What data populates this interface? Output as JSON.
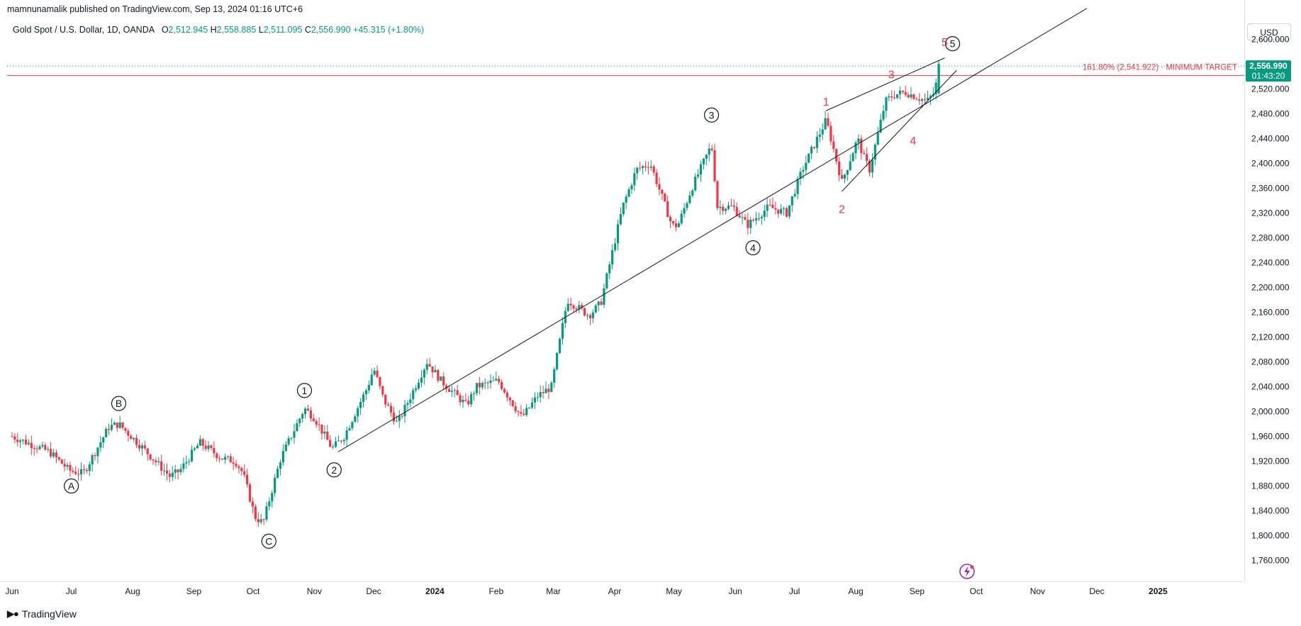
{
  "header": {
    "published_by": "mamnunamalik published on TradingView.com, Sep 13, 2024 01:16 UTC+6"
  },
  "symbol": {
    "name": "Gold Spot / U.S. Dollar, 1D, OANDA",
    "open_label": "O",
    "open": "2,512.945",
    "high_label": "H",
    "high": "2,558.885",
    "low_label": "L",
    "low": "2,511.095",
    "close_label": "C",
    "close": "2,556.990",
    "change": "+45.315 (+1.80%)"
  },
  "currency": "USD",
  "price_tag": {
    "price": "2,556.990",
    "countdown": "01:43:20",
    "color": "#089981"
  },
  "target": {
    "label": "161.80% (2,541.922) · MINIMUM TARGET",
    "color": "#f23645",
    "level": 2541.922
  },
  "colors": {
    "up": "#089981",
    "down": "#f23645",
    "line": "#131722"
  },
  "footer": {
    "logo_text": "TradingView"
  },
  "chart_data": {
    "type": "candlestick",
    "title": "Gold Spot / U.S. Dollar, 1D, OANDA",
    "ylim": [
      1735,
      2640
    ],
    "y_ticks": [
      "2,600.000",
      "2,560.000",
      "2,520.000",
      "2,480.000",
      "2,440.000",
      "2,400.000",
      "2,360.000",
      "2,320.000",
      "2,280.000",
      "2,240.000",
      "2,200.000",
      "2,160.000",
      "2,120.000",
      "2,080.000",
      "2,040.000",
      "2,000.000",
      "1,960.000",
      "1,920.000",
      "1,880.000",
      "1,840.000",
      "1,800.000",
      "1,760.000"
    ],
    "y_tick_values": [
      2600,
      2560,
      2520,
      2480,
      2440,
      2400,
      2360,
      2320,
      2280,
      2240,
      2200,
      2160,
      2120,
      2080,
      2040,
      2000,
      1960,
      1920,
      1880,
      1840,
      1800,
      1760
    ],
    "x_labels": [
      "Jun",
      "Jul",
      "Aug",
      "Sep",
      "Oct",
      "Nov",
      "Dec",
      "2024",
      "Feb",
      "Mar",
      "Apr",
      "May",
      "Jun",
      "Jul",
      "Aug",
      "Sep",
      "Oct",
      "Nov",
      "Dec",
      "2025"
    ],
    "price_path": [
      [
        "2023-06-01",
        1960
      ],
      [
        "2023-06-20",
        1935
      ],
      [
        "2023-06-30",
        1905
      ],
      [
        "2023-07-07",
        1900
      ],
      [
        "2023-07-20",
        1975
      ],
      [
        "2023-07-25",
        1980
      ],
      [
        "2023-08-05",
        1945
      ],
      [
        "2023-08-20",
        1895
      ],
      [
        "2023-08-25",
        1905
      ],
      [
        "2023-09-04",
        1950
      ],
      [
        "2023-09-15",
        1925
      ],
      [
        "2023-09-22",
        1920
      ],
      [
        "2023-09-26",
        1900
      ],
      [
        "2023-10-02",
        1830
      ],
      [
        "2023-10-06",
        1820
      ],
      [
        "2023-10-15",
        1925
      ],
      [
        "2023-10-27",
        2005
      ],
      [
        "2023-11-01",
        1990
      ],
      [
        "2023-11-10",
        1940
      ],
      [
        "2023-11-16",
        1960
      ],
      [
        "2023-11-28",
        2040
      ],
      [
        "2023-12-01",
        2070
      ],
      [
        "2023-12-06",
        2020
      ],
      [
        "2023-12-13",
        1980
      ],
      [
        "2023-12-28",
        2080
      ],
      [
        "2024-01-04",
        2050
      ],
      [
        "2024-01-17",
        2010
      ],
      [
        "2024-01-22",
        2040
      ],
      [
        "2024-02-02",
        2050
      ],
      [
        "2024-02-14",
        1990
      ],
      [
        "2024-02-22",
        2025
      ],
      [
        "2024-02-29",
        2040
      ],
      [
        "2024-03-08",
        2180
      ],
      [
        "2024-03-19",
        2155
      ],
      [
        "2024-03-25",
        2175
      ],
      [
        "2024-04-05",
        2330
      ],
      [
        "2024-04-12",
        2390
      ],
      [
        "2024-04-19",
        2400
      ],
      [
        "2024-04-30",
        2300
      ],
      [
        "2024-05-03",
        2300
      ],
      [
        "2024-05-10",
        2360
      ],
      [
        "2024-05-20",
        2430
      ],
      [
        "2024-05-23",
        2330
      ],
      [
        "2024-05-31",
        2330
      ],
      [
        "2024-06-07",
        2300
      ],
      [
        "2024-06-18",
        2330
      ],
      [
        "2024-06-27",
        2320
      ],
      [
        "2024-07-05",
        2390
      ],
      [
        "2024-07-17",
        2470
      ],
      [
        "2024-07-25",
        2370
      ],
      [
        "2024-08-02",
        2440
      ],
      [
        "2024-08-05",
        2410
      ],
      [
        "2024-08-08",
        2390
      ],
      [
        "2024-08-16",
        2500
      ],
      [
        "2024-08-20",
        2510
      ],
      [
        "2024-08-26",
        2515
      ],
      [
        "2024-09-06",
        2500
      ],
      [
        "2024-09-10",
        2515
      ],
      [
        "2024-09-12",
        2557
      ]
    ],
    "trendlines": [
      [
        [
          "2023-11-13",
          1935
        ],
        [
          "2024-11-26",
          2650
        ]
      ],
      [
        [
          "2024-07-17",
          2485
        ],
        [
          "2024-09-15",
          2570
        ]
      ],
      [
        [
          "2024-07-25",
          2355
        ],
        [
          "2024-09-21",
          2550
        ]
      ]
    ],
    "waves_circled": [
      {
        "label": "A",
        "date": "2023-07-01",
        "price": 1880
      },
      {
        "label": "B",
        "date": "2023-07-25",
        "price": 2013
      },
      {
        "label": "C",
        "date": "2023-10-09",
        "price": 1791
      },
      {
        "label": "1",
        "date": "2023-10-27",
        "price": 2034
      },
      {
        "label": "2",
        "date": "2023-11-11",
        "price": 1906
      },
      {
        "label": "3",
        "date": "2024-05-20",
        "price": 2478
      },
      {
        "label": "4",
        "date": "2024-06-10",
        "price": 2264
      },
      {
        "label": "5",
        "date": "2024-09-19",
        "price": 2593
      }
    ],
    "waves_red": [
      {
        "label": "1",
        "date": "2024-07-17",
        "price": 2500
      },
      {
        "label": "2",
        "date": "2024-07-25",
        "price": 2327
      },
      {
        "label": "3",
        "date": "2024-08-19",
        "price": 2544
      },
      {
        "label": "4",
        "date": "2024-08-30",
        "price": 2437
      },
      {
        "label": "5",
        "date": "2024-09-15",
        "price": 2596
      }
    ]
  }
}
